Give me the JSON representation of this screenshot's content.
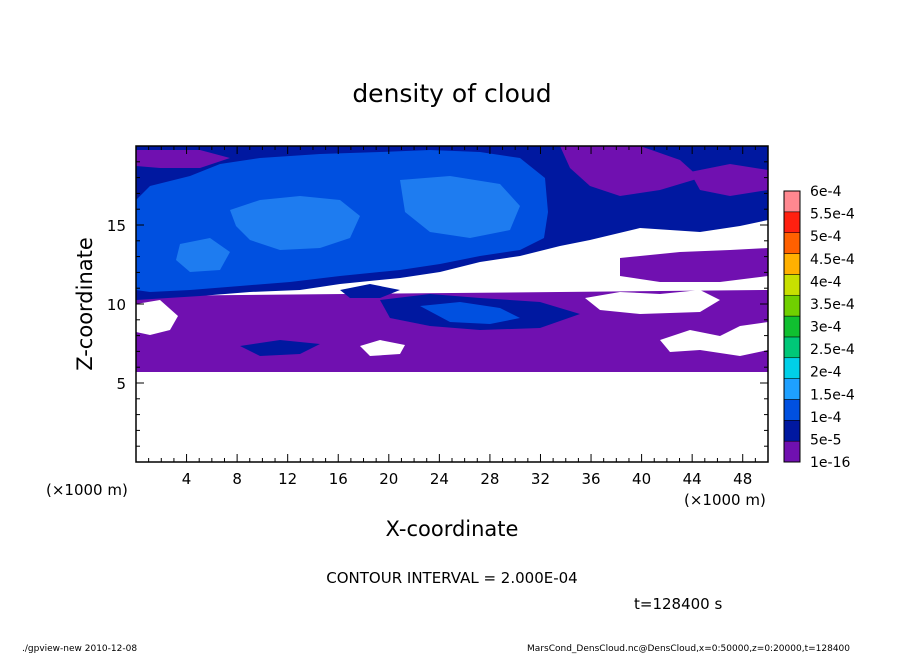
{
  "chart_data": {
    "type": "heatmap",
    "title": "density of cloud",
    "xlabel": "X-coordinate",
    "ylabel": "Z-coordinate",
    "x_unit_left": "(×1000 m)",
    "x_unit_right": "(×1000 m)",
    "xlim": [
      0,
      50
    ],
    "ylim": [
      0,
      20
    ],
    "x_ticks": [
      4,
      8,
      12,
      16,
      20,
      24,
      28,
      32,
      36,
      40,
      44,
      48
    ],
    "y_ticks": [
      5,
      10,
      15
    ],
    "grid": false,
    "legend_position": "right",
    "colorbar": {
      "labels": [
        "1e-16",
        "5e-5",
        "1e-4",
        "1.5e-4",
        "2e-4",
        "2.5e-4",
        "3e-4",
        "3.5e-4",
        "4e-4",
        "4.5e-4",
        "5e-4",
        "5.5e-4",
        "6e-4"
      ],
      "colors": [
        "#7010b0",
        "#0018a0",
        "#0050e0",
        "#1ea0ff",
        "#00d0e8",
        "#00c878",
        "#10c030",
        "#70d000",
        "#c8e000",
        "#ffb000",
        "#ff6000",
        "#ff2010",
        "#ff8890"
      ]
    },
    "regions": [
      {
        "level": "1e-16",
        "x": [
          0,
          50
        ],
        "z": [
          5.8,
          10.2
        ]
      },
      {
        "level": "5e-5",
        "x": [
          0,
          50
        ],
        "z": [
          10.2,
          20
        ]
      },
      {
        "level": "1e-4",
        "x": [
          0,
          32
        ],
        "z": [
          10.5,
          19.5
        ]
      },
      {
        "level": "1.5e-4",
        "x": [
          8,
          20
        ],
        "z": [
          13,
          16
        ]
      }
    ],
    "contour_interval": "CONTOUR INTERVAL = 2.000E-04",
    "time_label": "t=128400 s"
  },
  "footer": {
    "left": "./gpview-new  2010-12-08",
    "right": "MarsCond_DensCloud.nc@DensCloud,x=0:50000,z=0:20000,t=128400"
  }
}
